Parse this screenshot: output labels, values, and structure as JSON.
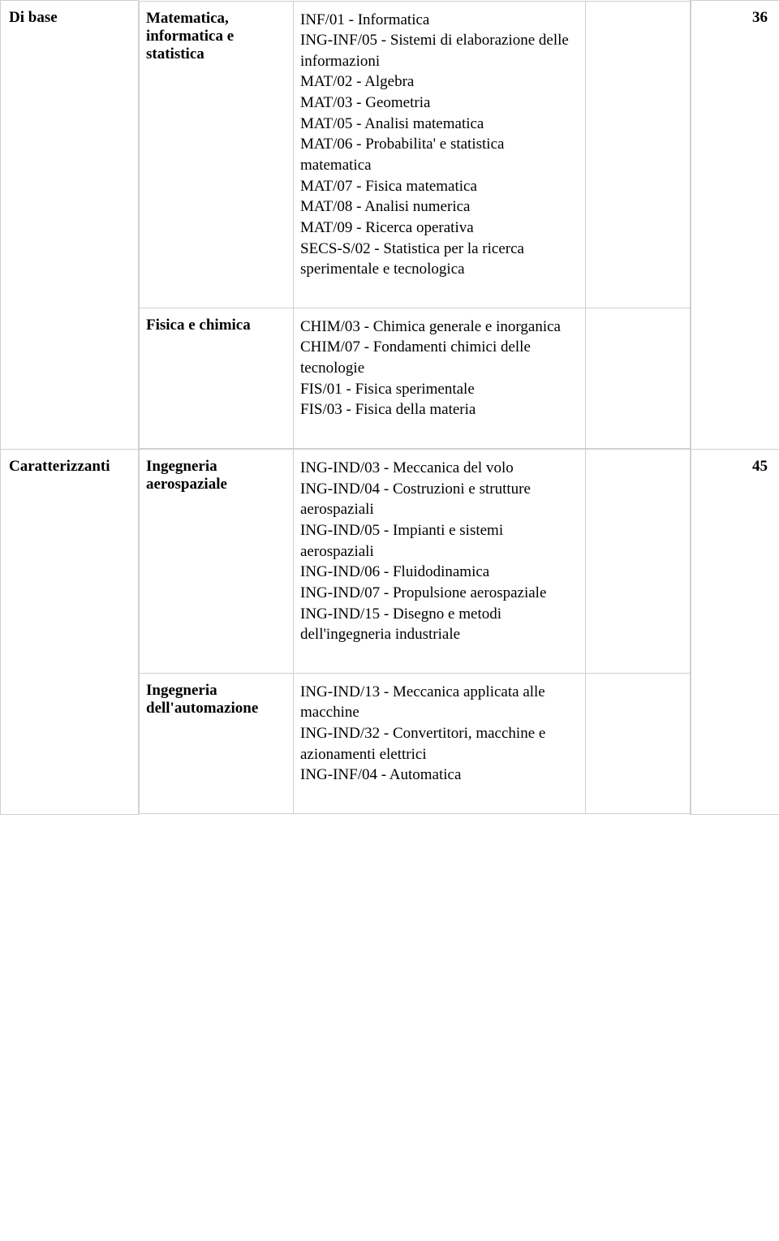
{
  "rows": [
    {
      "category": "Di base",
      "credits": "36",
      "groups": [
        {
          "sub": "Matematica, informatica e statistica",
          "desc": "INF/01 - Informatica\nING-INF/05 - Sistemi di elaborazione delle informazioni\nMAT/02 - Algebra\nMAT/03 - Geometria\nMAT/05 - Analisi matematica\nMAT/06 - Probabilita' e statistica matematica\nMAT/07 - Fisica matematica\nMAT/08 - Analisi numerica\nMAT/09 - Ricerca operativa\nSECS-S/02 - Statistica per la ricerca sperimentale e tecnologica"
        },
        {
          "sub": "Fisica e chimica",
          "desc": "CHIM/03 - Chimica generale e inorganica\nCHIM/07 - Fondamenti chimici delle tecnologie\nFIS/01 - Fisica sperimentale\nFIS/03 - Fisica della materia"
        }
      ]
    },
    {
      "category": "Caratterizzanti",
      "credits": "45",
      "groups": [
        {
          "sub": "Ingegneria aerospaziale",
          "desc": "ING-IND/03 - Meccanica del volo\nING-IND/04 - Costruzioni e strutture aerospaziali\nING-IND/05 - Impianti e sistemi aerospaziali\nING-IND/06 - Fluidodinamica\nING-IND/07 - Propulsione aerospaziale\nING-IND/15 - Disegno e metodi dell'ingegneria industriale"
        },
        {
          "sub": "Ingegneria dell'automazione",
          "desc": "ING-IND/13 - Meccanica applicata alle macchine\nING-IND/32 - Convertitori, macchine e azionamenti elettrici\nING-INF/04 - Automatica"
        }
      ]
    }
  ]
}
